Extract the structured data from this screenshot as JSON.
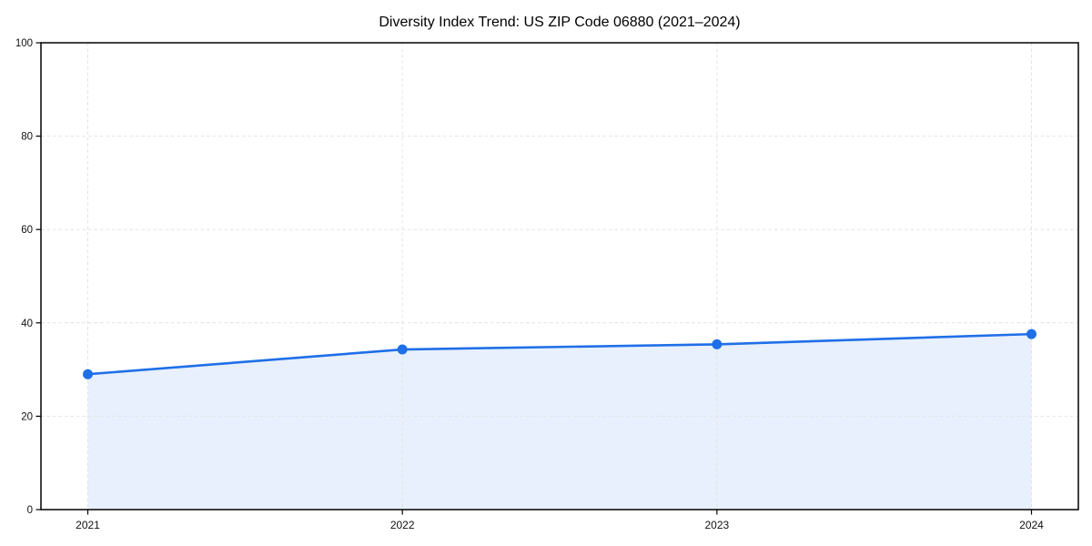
{
  "page": {
    "background": "#ffffff"
  },
  "chart_data": {
    "type": "line",
    "title": "Diversity Index Trend: US ZIP Code 06880 (2021–2024)",
    "xlabel": "",
    "ylabel": "",
    "categories": [
      "2021",
      "2022",
      "2023",
      "2024"
    ],
    "series": [
      {
        "name": "Diversity Index",
        "values": [
          29.0,
          34.3,
          35.4,
          37.6
        ]
      }
    ],
    "ylim": [
      0,
      100
    ],
    "yticks": [
      0,
      20,
      40,
      60,
      80,
      100
    ],
    "grid": true,
    "grid_style": "dashed",
    "area_fill": true,
    "markers": true,
    "legend_position": "none",
    "colors": {
      "line": "#1f6fe8",
      "marker": "#1f6fe8",
      "fill": "#1f6fe8",
      "fill_opacity": 0.1,
      "grid": "#e2e2e2",
      "axis": "#000000",
      "tick_label": "#111111",
      "title": "#000000",
      "plot_background": "#ffffff"
    }
  }
}
